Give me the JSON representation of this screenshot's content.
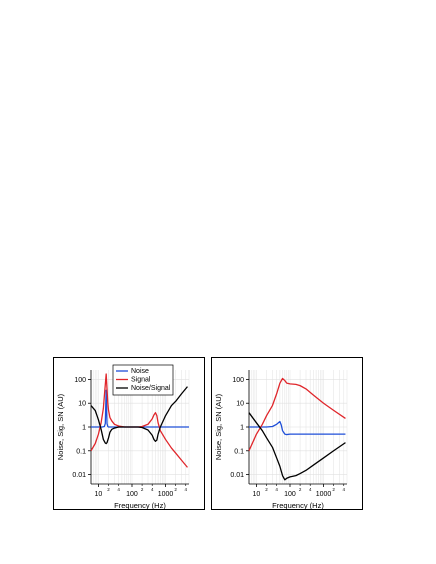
{
  "chart_data": [
    {
      "type": "line",
      "xlabel": "Frequency (Hz)",
      "ylabel": "Noise, Sig, SN (AU)",
      "xscale": "log",
      "yscale": "log",
      "xlim": [
        6,
        5000
      ],
      "ylim": [
        0.004,
        250
      ],
      "grid": true,
      "legend": "top-center",
      "yticks": [
        {
          "v": 100,
          "label": "100"
        },
        {
          "v": 10,
          "label": "10"
        },
        {
          "v": 1,
          "label": "1"
        },
        {
          "v": 0.1,
          "label": "0.1"
        },
        {
          "v": 0.01,
          "label": "0.01"
        }
      ],
      "xticks": [
        {
          "v": 10,
          "label": "10"
        },
        {
          "v": 100,
          "label": "100"
        },
        {
          "v": 1000,
          "label": "1000"
        }
      ],
      "xminor": [
        {
          "v": 20,
          "label": "2"
        },
        {
          "v": 40,
          "label": "4"
        },
        {
          "v": 200,
          "label": "2"
        },
        {
          "v": 400,
          "label": "4"
        },
        {
          "v": 2000,
          "label": "2"
        },
        {
          "v": 4000,
          "label": "4"
        }
      ],
      "series": [
        {
          "name": "Noise",
          "color": "#1f4fd8",
          "x": [
            6,
            10,
            13,
            15,
            16,
            17,
            18,
            19,
            20,
            22,
            25,
            30,
            50,
            100,
            200,
            500,
            1000,
            2000,
            5000
          ],
          "y": [
            1,
            1,
            1,
            1.05,
            1.4,
            35,
            1.4,
            1.05,
            1,
            1,
            1,
            1,
            1,
            1,
            1,
            1,
            1,
            1,
            1
          ]
        },
        {
          "name": "Signal",
          "color": "#e0262b",
          "x": [
            6,
            8,
            10,
            12,
            14,
            15,
            16,
            17,
            18,
            19,
            20,
            22,
            25,
            30,
            40,
            60,
            100,
            150,
            200,
            300,
            400,
            450,
            500,
            550,
            600,
            700,
            1000,
            1500,
            2000,
            3000,
            4500
          ],
          "y": [
            0.1,
            0.2,
            0.5,
            1.5,
            6,
            20,
            60,
            170,
            40,
            10,
            5,
            2.5,
            1.8,
            1.3,
            1.1,
            1,
            1,
            1,
            1.05,
            1.3,
            2.2,
            3.2,
            4,
            3,
            1.5,
            0.7,
            0.3,
            0.13,
            0.08,
            0.04,
            0.02
          ]
        },
        {
          "name": "Noise/Signal",
          "color": "#000000",
          "x": [
            6,
            8,
            10,
            12,
            14,
            15,
            16,
            17,
            18,
            20,
            22,
            25,
            30,
            40,
            60,
            100,
            150,
            200,
            300,
            400,
            450,
            500,
            550,
            600,
            700,
            1000,
            1500,
            2000,
            3000,
            4500
          ],
          "y": [
            8,
            5,
            2,
            0.8,
            0.3,
            0.25,
            0.21,
            0.2,
            0.22,
            0.35,
            0.6,
            0.8,
            0.9,
            1,
            1,
            1,
            1,
            0.95,
            0.75,
            0.45,
            0.3,
            0.25,
            0.28,
            0.5,
            1,
            3,
            8,
            12,
            25,
            50
          ]
        }
      ]
    },
    {
      "type": "line",
      "xlabel": "Frequency (Hz)",
      "ylabel": "Noise, Sig, SN (AU)",
      "xscale": "log",
      "yscale": "log",
      "xlim": [
        6,
        5000
      ],
      "ylim": [
        0.004,
        250
      ],
      "grid": true,
      "yticks": [
        {
          "v": 100,
          "label": "100"
        },
        {
          "v": 10,
          "label": "10"
        },
        {
          "v": 1,
          "label": "1"
        },
        {
          "v": 0.1,
          "label": "0.1"
        },
        {
          "v": 0.01,
          "label": "0.01"
        }
      ],
      "xticks": [
        {
          "v": 10,
          "label": "10"
        },
        {
          "v": 100,
          "label": "100"
        },
        {
          "v": 1000,
          "label": "1000"
        }
      ],
      "xminor": [
        {
          "v": 20,
          "label": "2"
        },
        {
          "v": 40,
          "label": "4"
        },
        {
          "v": 200,
          "label": "2"
        },
        {
          "v": 400,
          "label": "4"
        },
        {
          "v": 2000,
          "label": "2"
        },
        {
          "v": 4000,
          "label": "4"
        }
      ],
      "series": [
        {
          "name": "Noise",
          "color": "#1f4fd8",
          "x": [
            6,
            10,
            20,
            30,
            40,
            50,
            55,
            60,
            70,
            80,
            100,
            200,
            500,
            1000,
            2000,
            4500
          ],
          "y": [
            1,
            1,
            1,
            1.05,
            1.3,
            1.7,
            1.2,
            0.7,
            0.5,
            0.48,
            0.5,
            0.5,
            0.5,
            0.5,
            0.5,
            0.5
          ]
        },
        {
          "name": "Signal",
          "color": "#e0262b",
          "x": [
            6,
            10,
            15,
            20,
            30,
            40,
            50,
            60,
            70,
            80,
            100,
            150,
            200,
            300,
            500,
            1000,
            2000,
            4500
          ],
          "y": [
            0.1,
            0.5,
            1.3,
            3,
            8,
            25,
            70,
            110,
            90,
            70,
            65,
            62,
            55,
            40,
            22,
            10,
            5,
            2.3
          ]
        },
        {
          "name": "Noise/Signal",
          "color": "#000000",
          "x": [
            6,
            10,
            15,
            20,
            30,
            40,
            50,
            60,
            70,
            80,
            100,
            150,
            200,
            300,
            500,
            1000,
            2000,
            4500
          ],
          "y": [
            4,
            1.5,
            0.7,
            0.35,
            0.14,
            0.05,
            0.022,
            0.009,
            0.006,
            0.007,
            0.008,
            0.009,
            0.011,
            0.015,
            0.025,
            0.05,
            0.1,
            0.22
          ]
        }
      ]
    }
  ]
}
